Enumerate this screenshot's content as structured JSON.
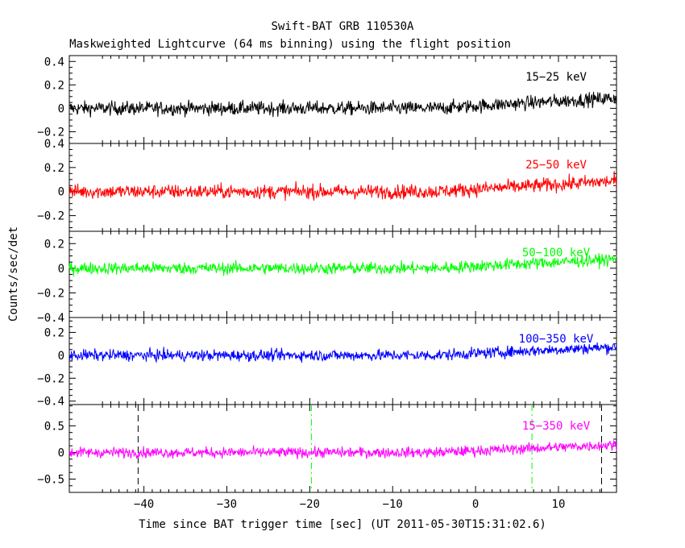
{
  "chart_data": {
    "type": "line",
    "title": "Swift-BAT GRB 110530A",
    "subtitle": "Maskweighted Lightcurve (64 ms binning) using the flight position",
    "xlabel": "Time since BAT trigger time [sec] (UT 2011-05-30T15:31:02.6)",
    "ylabel": "Counts/sec/det",
    "xlim": [
      -49,
      17
    ],
    "xticks": [
      -40,
      -30,
      -20,
      -10,
      0,
      10
    ],
    "bin_seconds": 0.064,
    "panels": [
      {
        "name": "15-25 keV",
        "label": "15−25 keV",
        "color": "#000000",
        "ylim": [
          -0.3,
          0.45
        ],
        "yticks": [
          -0.2,
          0,
          0.2,
          0.4
        ],
        "level": 0.0,
        "noise_sigma": 0.03
      },
      {
        "name": "25-50 keV",
        "label": "25−50 keV",
        "color": "#ff0000",
        "ylim": [
          -0.33,
          0.4
        ],
        "yticks": [
          -0.2,
          0,
          0.2,
          0.4
        ],
        "level": 0.0,
        "noise_sigma": 0.03
      },
      {
        "name": "50-100 keV",
        "label": "50−100 keV",
        "color": "#00ff00",
        "ylim": [
          -0.4,
          0.3
        ],
        "yticks": [
          -0.4,
          -0.2,
          0,
          0.2
        ],
        "level": 0.0,
        "noise_sigma": 0.025
      },
      {
        "name": "100-350 keV",
        "label": "100−350 keV",
        "color": "#0000ff",
        "ylim": [
          -0.43,
          0.33
        ],
        "yticks": [
          -0.4,
          -0.2,
          0,
          0.2
        ],
        "level": 0.0,
        "noise_sigma": 0.025
      },
      {
        "name": "15-350 keV",
        "label": "15−350 keV",
        "color": "#ff00ff",
        "ylim": [
          -0.75,
          0.9
        ],
        "yticks": [
          -0.5,
          0,
          0.5
        ],
        "level": 0.0,
        "noise_sigma": 0.05,
        "vlines": [
          {
            "x": -40.7,
            "style": "dashed",
            "color": "#000000"
          },
          {
            "x": -19.8,
            "style": "dashdot",
            "color": "#00ff00"
          },
          {
            "x": 6.8,
            "style": "dashdot",
            "color": "#00ff00"
          },
          {
            "x": 15.2,
            "style": "dashed",
            "color": "#000000"
          }
        ]
      }
    ]
  }
}
